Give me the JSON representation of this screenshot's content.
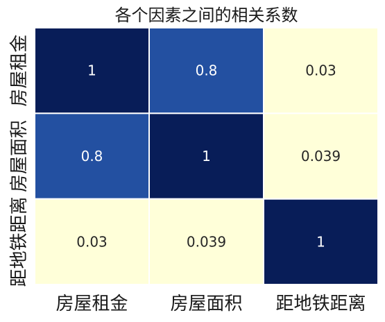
{
  "chart_data": {
    "type": "heatmap",
    "title": "各个因素之间的相关系数",
    "x_categories": [
      "房屋租金",
      "房屋面积",
      "距地铁距离"
    ],
    "y_categories": [
      "房屋租金",
      "房屋面积",
      "距地铁距离"
    ],
    "values": [
      [
        1,
        0.8,
        0.03
      ],
      [
        0.8,
        1,
        0.039
      ],
      [
        0.03,
        0.039,
        1
      ]
    ],
    "cell_labels": [
      [
        "1",
        "0.8",
        "0.03"
      ],
      [
        "0.8",
        "1",
        "0.039"
      ],
      [
        "0.03",
        "0.039",
        "1"
      ]
    ],
    "colormap": "YlGnBu",
    "colors": {
      "cell_1": "#081d58",
      "cell_0_8": "#2350a1",
      "cell_0_03": "#ffffd9",
      "cell_0_039": "#ffffd9",
      "text_dark_cell": "#ffffff",
      "text_light_cell": "#262626",
      "grid_line": "#ffffff"
    },
    "cell_borders": true,
    "colorbar": false
  }
}
